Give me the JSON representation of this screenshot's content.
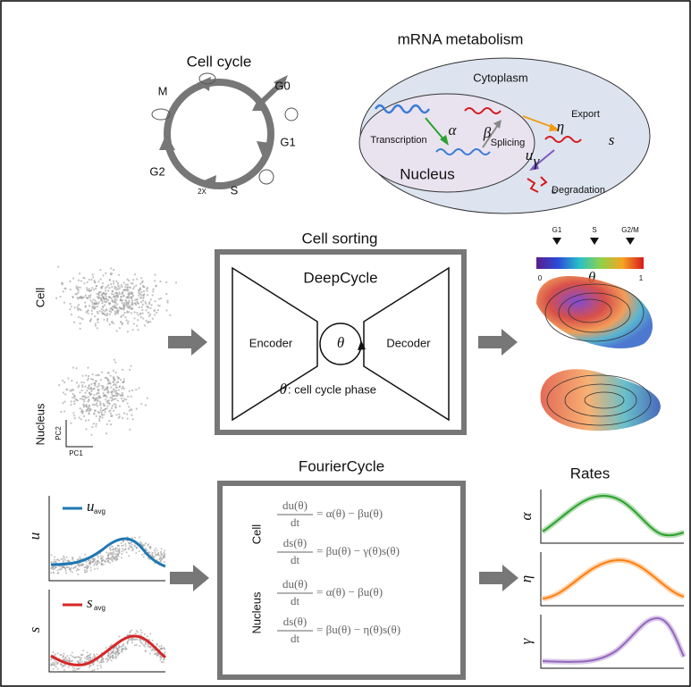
{
  "cell_cycle": {
    "title": "Cell cycle",
    "phases": [
      "M",
      "G0",
      "G1",
      "G2",
      "S"
    ],
    "dna_label": "2X"
  },
  "mrna": {
    "title": "mRNA metabolism",
    "cytoplasm": "Cytoplasm",
    "nucleus": "Nucleus",
    "transcription": "Transcription",
    "alpha": "α",
    "beta": "β",
    "splicing": "Splicing",
    "eta": "η",
    "export": "Export",
    "u": "u",
    "s": "s",
    "gamma": "γ",
    "degradation": "Degradation",
    "empty": "∅"
  },
  "cell_sorting": {
    "title": "Cell sorting",
    "model": "DeepCycle",
    "encoder": "Encoder",
    "decoder": "Decoder",
    "theta": "θ",
    "caption_symbol": "θ",
    "caption": ": cell cycle phase",
    "inputs": {
      "cell": "Cell",
      "nucleus": "Nucleus",
      "pc1": "PC1",
      "pc2": "PC2"
    },
    "colorbar": {
      "markers": [
        "G1",
        "S",
        "G2/M"
      ],
      "min": "0",
      "label": "θ",
      "max": "1"
    }
  },
  "fourier_cycle": {
    "title": "FourierCycle",
    "groups": [
      {
        "label": "Cell",
        "equations": [
          {
            "numerator": "du(θ)",
            "denominator": "dt",
            "rhs": "= α(θ) − βu(θ)"
          },
          {
            "numerator": "ds(θ)",
            "denominator": "dt",
            "rhs": "= βu(θ) − γ(θ)s(θ)"
          }
        ]
      },
      {
        "label": "Nucleus",
        "equations": [
          {
            "numerator": "du(θ)",
            "denominator": "dt",
            "rhs": "= α(θ) − βu(θ)"
          },
          {
            "numerator": "ds(θ)",
            "denominator": "dt",
            "rhs": "= βu(θ) − η(θ)s(θ)"
          }
        ]
      }
    ],
    "inputs": [
      {
        "axis": "u",
        "legend": "u",
        "subscript": "avg"
      },
      {
        "axis": "s",
        "legend": "s",
        "subscript": "avg"
      }
    ]
  },
  "rates": {
    "title": "Rates",
    "labels": [
      "α",
      "η",
      "γ"
    ]
  }
}
